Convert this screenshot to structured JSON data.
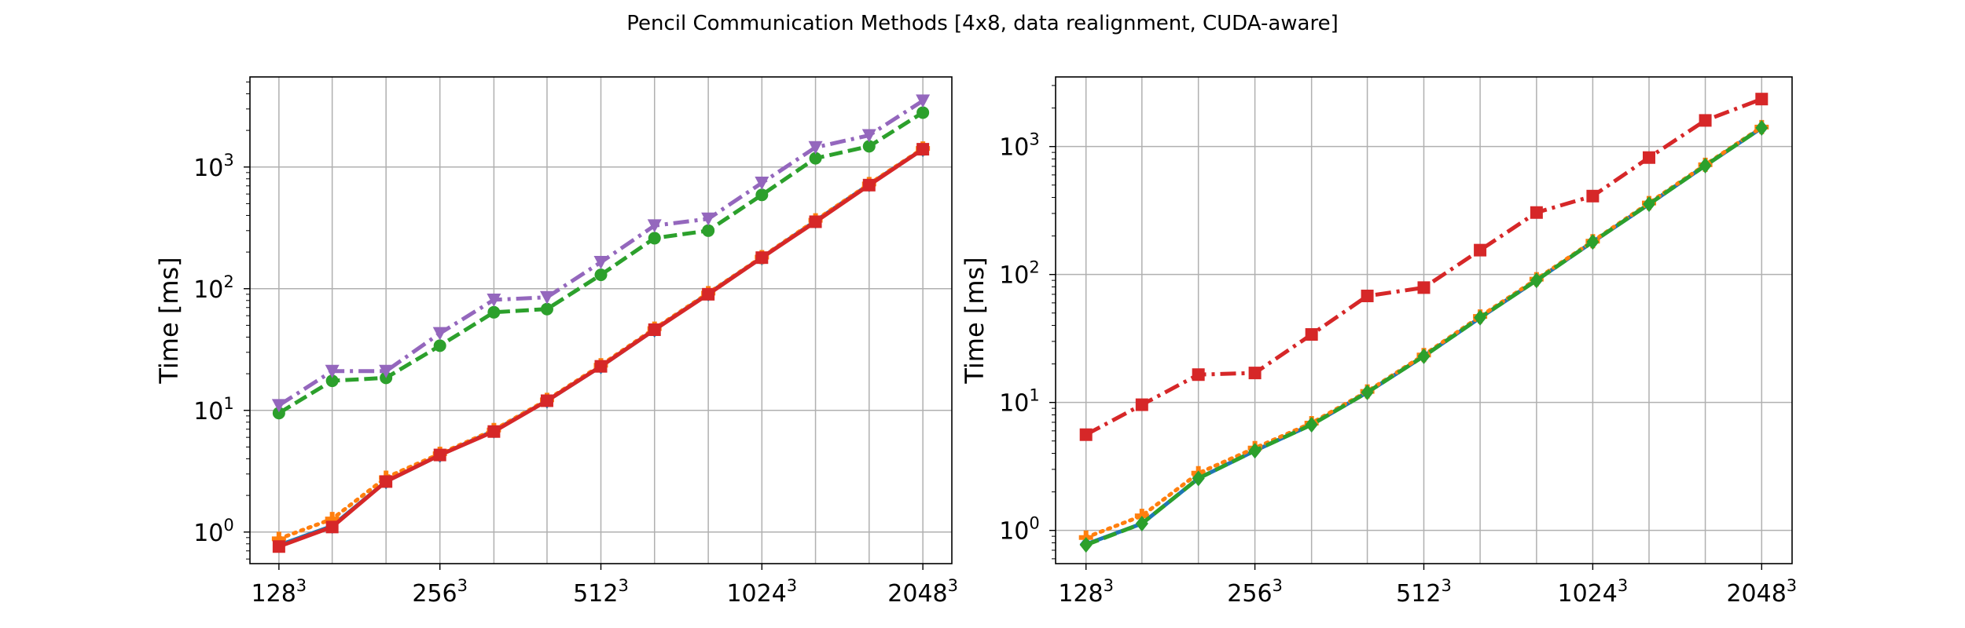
{
  "figure": {
    "title": "Pencil Communication Methods [4x8, data realignment, CUDA-aware]"
  },
  "colors": {
    "blue": "#1f77b4",
    "orange": "#ff7f0e",
    "green": "#2ca02c",
    "red": "#d62728",
    "purple": "#9467bd",
    "grid": "#b0b0b0"
  },
  "chart_data": [
    {
      "type": "line",
      "title": "",
      "xlabel": "",
      "ylabel": "Time [ms]",
      "xscale": "log2",
      "yscale": "log",
      "grid": true,
      "x": [
        128,
        161,
        203,
        256,
        323,
        406,
        512,
        645,
        813,
        1024,
        1290,
        1625,
        2048
      ],
      "xticks": [
        {
          "x": 128,
          "base": "128",
          "exp": "3"
        },
        {
          "x": 256,
          "base": "256",
          "exp": "3"
        },
        {
          "x": 512,
          "base": "512",
          "exp": "3"
        },
        {
          "x": 1024,
          "base": "1024",
          "exp": "3"
        },
        {
          "x": 2048,
          "base": "2048",
          "exp": "3"
        }
      ],
      "yticks": [
        {
          "y": 1,
          "base": "10",
          "exp": "0"
        },
        {
          "y": 10,
          "base": "10",
          "exp": "1"
        },
        {
          "y": 100,
          "base": "10",
          "exp": "2"
        },
        {
          "y": 1000,
          "base": "10",
          "exp": "3"
        }
      ],
      "ylim": [
        0.55,
        5500
      ],
      "series": [
        {
          "color": "#1f77b4",
          "linestyle": "solid",
          "marker": "diamond",
          "values": [
            0.78,
            1.12,
            2.6,
            4.3,
            6.8,
            12.0,
            23.0,
            46.0,
            91.0,
            180.0,
            360.0,
            720.0,
            1400.0
          ]
        },
        {
          "color": "#ff7f0e",
          "linestyle": "dotted",
          "marker": "plus",
          "values": [
            0.88,
            1.28,
            2.8,
            4.4,
            6.9,
            12.2,
            23.5,
            47.0,
            92.0,
            182.0,
            365.0,
            725.0,
            1420.0
          ]
        },
        {
          "color": "#2ca02c",
          "linestyle": "dashed",
          "marker": "circle",
          "values": [
            9.5,
            17.5,
            18.5,
            34.0,
            64.0,
            68.0,
            130.0,
            260.0,
            300.0,
            590.0,
            1180.0,
            1480.0,
            2800.0
          ]
        },
        {
          "color": "#9467bd",
          "linestyle": "dashdot",
          "marker": "triangle-down",
          "values": [
            11.0,
            21.0,
            21.0,
            43.0,
            81.0,
            85.0,
            165.0,
            330.0,
            375.0,
            740.0,
            1450.0,
            1820.0,
            3500.0
          ]
        },
        {
          "color": "#d62728",
          "linestyle": "solid",
          "marker": "square",
          "values": [
            0.76,
            1.1,
            2.6,
            4.3,
            6.7,
            12.0,
            23.0,
            46.0,
            90.0,
            180.0,
            355.0,
            710.0,
            1400.0
          ]
        }
      ]
    },
    {
      "type": "line",
      "title": "",
      "xlabel": "",
      "ylabel": "Time [ms]",
      "xscale": "log2",
      "yscale": "log",
      "grid": true,
      "x": [
        128,
        161,
        203,
        256,
        323,
        406,
        512,
        645,
        813,
        1024,
        1290,
        1625,
        2048
      ],
      "xticks": [
        {
          "x": 128,
          "base": "128",
          "exp": "3"
        },
        {
          "x": 256,
          "base": "256",
          "exp": "3"
        },
        {
          "x": 512,
          "base": "512",
          "exp": "3"
        },
        {
          "x": 1024,
          "base": "1024",
          "exp": "3"
        },
        {
          "x": 2048,
          "base": "2048",
          "exp": "3"
        }
      ],
      "yticks": [
        {
          "y": 1,
          "base": "10",
          "exp": "0"
        },
        {
          "y": 10,
          "base": "10",
          "exp": "1"
        },
        {
          "y": 100,
          "base": "10",
          "exp": "2"
        },
        {
          "y": 1000,
          "base": "10",
          "exp": "3"
        }
      ],
      "ylim": [
        0.55,
        3500
      ],
      "series": [
        {
          "color": "#1f77b4",
          "linestyle": "solid",
          "marker": "diamond",
          "values": [
            0.78,
            1.13,
            2.55,
            4.2,
            6.7,
            12.0,
            23.0,
            46.0,
            90.0,
            180.0,
            355.0,
            710.0,
            1400.0
          ]
        },
        {
          "color": "#ff7f0e",
          "linestyle": "dotted",
          "marker": "plus",
          "values": [
            0.88,
            1.3,
            2.8,
            4.4,
            6.9,
            12.2,
            23.5,
            47.0,
            92.0,
            182.0,
            362.0,
            720.0,
            1420.0
          ]
        },
        {
          "color": "#d62728",
          "linestyle": "dashdot",
          "marker": "square",
          "values": [
            5.6,
            9.6,
            16.5,
            17.0,
            34.0,
            68.0,
            79.0,
            155.0,
            305.0,
            410.0,
            820.0,
            1600.0,
            2350.0
          ]
        },
        {
          "color": "#2ca02c",
          "linestyle": "dashed",
          "marker": "diamond",
          "values": [
            0.77,
            1.13,
            2.55,
            4.2,
            6.7,
            12.0,
            23.0,
            46.0,
            90.0,
            180.0,
            355.0,
            710.0,
            1400.0
          ]
        }
      ]
    }
  ]
}
